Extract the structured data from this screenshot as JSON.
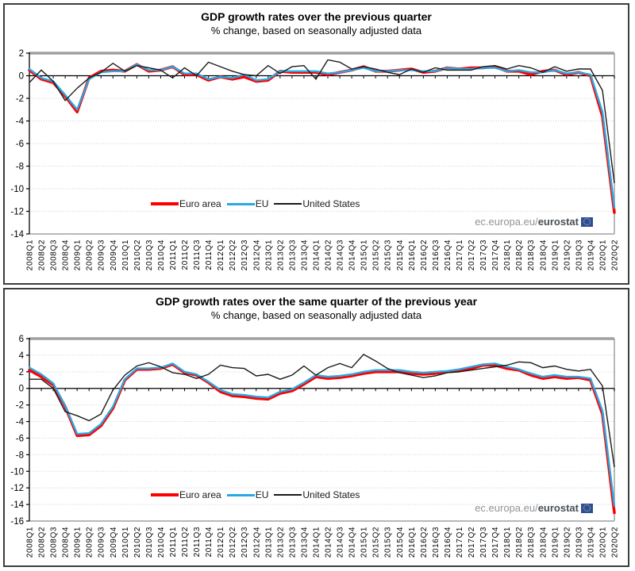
{
  "colors": {
    "euro_area": "#ff0000",
    "eu": "#29a8e1",
    "united_states": "#1a1a1a",
    "grid": "#cfcfcf",
    "plot_border": "#a0a0a0",
    "axis": "#000000"
  },
  "watermark": {
    "prefix": "ec.europa.eu/",
    "brand": "eurostat",
    "flag_color": "#2a4da0"
  },
  "chart_data": [
    {
      "type": "line",
      "title": "GDP growth rates over the previous quarter",
      "subtitle": "% change, based on seasonally adjusted data",
      "ylim": [
        -14,
        2
      ],
      "ytick_step": 2,
      "grid": "horizontal-dotted",
      "legend_position": "inside-bottom-left",
      "categories": [
        "2008Q1",
        "2008Q2",
        "2008Q3",
        "2008Q4",
        "2009Q1",
        "2009Q2",
        "2009Q3",
        "2009Q4",
        "2010Q1",
        "2010Q2",
        "2010Q3",
        "2010Q4",
        "2011Q1",
        "2011Q2",
        "2011Q3",
        "2011Q4",
        "2012Q1",
        "2012Q2",
        "2012Q3",
        "2012Q4",
        "2013Q1",
        "2013Q2",
        "2013Q3",
        "2013Q4",
        "2014Q1",
        "2014Q2",
        "2014Q3",
        "2014Q4",
        "2015Q1",
        "2015Q2",
        "2015Q3",
        "2015Q4",
        "2016Q1",
        "2016Q2",
        "2016Q3",
        "2016Q4",
        "2017Q1",
        "2017Q2",
        "2017Q3",
        "2017Q4",
        "2018Q1",
        "2018Q2",
        "2018Q3",
        "2018Q4",
        "2019Q1",
        "2019Q2",
        "2019Q3",
        "2019Q4",
        "2020Q1",
        "2020Q2"
      ],
      "series": [
        {
          "name": "Euro area",
          "color": "#ff0000",
          "values": [
            0.5,
            -0.3,
            -0.6,
            -1.8,
            -3.2,
            -0.2,
            0.4,
            0.5,
            0.4,
            1.0,
            0.4,
            0.5,
            0.8,
            0.1,
            0.1,
            -0.4,
            -0.1,
            -0.3,
            -0.1,
            -0.5,
            -0.4,
            0.4,
            0.3,
            0.3,
            0.3,
            0.1,
            0.3,
            0.5,
            0.8,
            0.4,
            0.4,
            0.5,
            0.6,
            0.3,
            0.4,
            0.7,
            0.6,
            0.7,
            0.7,
            0.8,
            0.4,
            0.4,
            0.1,
            0.4,
            0.5,
            0.1,
            0.3,
            0.0,
            -3.6,
            -12.1
          ]
        },
        {
          "name": "EU",
          "color": "#29a8e1",
          "values": [
            0.6,
            -0.2,
            -0.5,
            -1.7,
            -3.0,
            -0.3,
            0.3,
            0.4,
            0.4,
            1.0,
            0.5,
            0.5,
            0.8,
            0.2,
            0.2,
            -0.3,
            -0.1,
            -0.2,
            0.1,
            -0.4,
            -0.3,
            0.4,
            0.4,
            0.4,
            0.4,
            0.2,
            0.3,
            0.5,
            0.7,
            0.4,
            0.4,
            0.5,
            0.5,
            0.4,
            0.4,
            0.7,
            0.6,
            0.6,
            0.7,
            0.7,
            0.4,
            0.5,
            0.3,
            0.3,
            0.5,
            0.2,
            0.3,
            0.1,
            -3.2,
            -11.7
          ]
        },
        {
          "name": "United States",
          "color": "#1a1a1a",
          "values": [
            -0.6,
            0.5,
            -0.5,
            -2.2,
            -1.1,
            -0.2,
            0.3,
            1.1,
            0.4,
            0.9,
            0.7,
            0.5,
            -0.2,
            0.7,
            0.0,
            1.2,
            0.8,
            0.4,
            0.1,
            0.0,
            0.9,
            0.2,
            0.8,
            0.9,
            -0.3,
            1.4,
            1.2,
            0.6,
            0.8,
            0.6,
            0.3,
            0.1,
            0.6,
            0.3,
            0.7,
            0.5,
            0.5,
            0.5,
            0.8,
            0.9,
            0.6,
            0.9,
            0.7,
            0.3,
            0.8,
            0.4,
            0.6,
            0.6,
            -1.3,
            -9.5
          ]
        }
      ]
    },
    {
      "type": "line",
      "title": "GDP growth rates over the same quarter of the previous year",
      "subtitle": "% change, based on seasonally adjusted data",
      "ylim": [
        -16,
        6
      ],
      "ytick_step": 2,
      "grid": "horizontal-dotted",
      "legend_position": "inside-bottom-left",
      "categories": [
        "2008Q1",
        "2008Q2",
        "2008Q3",
        "2008Q4",
        "2009Q1",
        "2009Q2",
        "2009Q3",
        "2009Q4",
        "2010Q1",
        "2010Q2",
        "2010Q3",
        "2010Q4",
        "2011Q1",
        "2011Q2",
        "2011Q3",
        "2011Q4",
        "2012Q1",
        "2012Q2",
        "2012Q3",
        "2012Q4",
        "2013Q1",
        "2013Q2",
        "2013Q3",
        "2013Q4",
        "2014Q1",
        "2014Q2",
        "2014Q3",
        "2014Q4",
        "2015Q1",
        "2015Q2",
        "2015Q3",
        "2015Q4",
        "2016Q1",
        "2016Q2",
        "2016Q3",
        "2016Q4",
        "2017Q1",
        "2017Q2",
        "2017Q3",
        "2017Q4",
        "2018Q1",
        "2018Q2",
        "2018Q3",
        "2018Q4",
        "2019Q1",
        "2019Q2",
        "2019Q3",
        "2019Q4",
        "2020Q1",
        "2020Q2"
      ],
      "series": [
        {
          "name": "Euro area",
          "color": "#ff0000",
          "values": [
            2.2,
            1.4,
            0.4,
            -2.2,
            -5.7,
            -5.6,
            -4.5,
            -2.4,
            1.0,
            2.3,
            2.3,
            2.4,
            2.9,
            1.9,
            1.6,
            0.7,
            -0.4,
            -0.9,
            -1.0,
            -1.2,
            -1.3,
            -0.6,
            -0.3,
            0.5,
            1.4,
            1.2,
            1.3,
            1.5,
            1.8,
            2.0,
            2.0,
            2.0,
            1.8,
            1.7,
            1.8,
            2.0,
            2.1,
            2.4,
            2.8,
            2.8,
            2.4,
            2.2,
            1.6,
            1.2,
            1.4,
            1.2,
            1.3,
            1.0,
            -3.1,
            -15.0
          ]
        },
        {
          "name": "EU",
          "color": "#29a8e1",
          "values": [
            2.5,
            1.7,
            0.6,
            -2.1,
            -5.5,
            -5.4,
            -4.3,
            -2.2,
            1.1,
            2.4,
            2.4,
            2.5,
            3.0,
            2.0,
            1.7,
            0.8,
            -0.2,
            -0.7,
            -0.8,
            -1.0,
            -1.1,
            -0.4,
            -0.1,
            0.7,
            1.6,
            1.4,
            1.5,
            1.7,
            2.0,
            2.2,
            2.2,
            2.2,
            2.0,
            1.9,
            2.0,
            2.1,
            2.3,
            2.6,
            2.9,
            3.0,
            2.6,
            2.3,
            1.8,
            1.4,
            1.6,
            1.4,
            1.4,
            1.2,
            -2.7,
            -14.2
          ]
        },
        {
          "name": "United States",
          "color": "#1a1a1a",
          "values": [
            1.1,
            1.1,
            0.0,
            -2.8,
            -3.3,
            -3.9,
            -3.1,
            -0.2,
            1.6,
            2.7,
            3.1,
            2.6,
            1.9,
            1.7,
            1.2,
            1.7,
            2.8,
            2.5,
            2.4,
            1.5,
            1.7,
            1.1,
            1.6,
            2.7,
            1.6,
            2.5,
            3.0,
            2.5,
            4.1,
            3.3,
            2.4,
            1.9,
            1.6,
            1.3,
            1.5,
            1.9,
            2.0,
            2.2,
            2.4,
            2.6,
            2.8,
            3.2,
            3.1,
            2.5,
            2.7,
            2.3,
            2.1,
            2.3,
            0.3,
            -9.5
          ]
        }
      ]
    }
  ]
}
